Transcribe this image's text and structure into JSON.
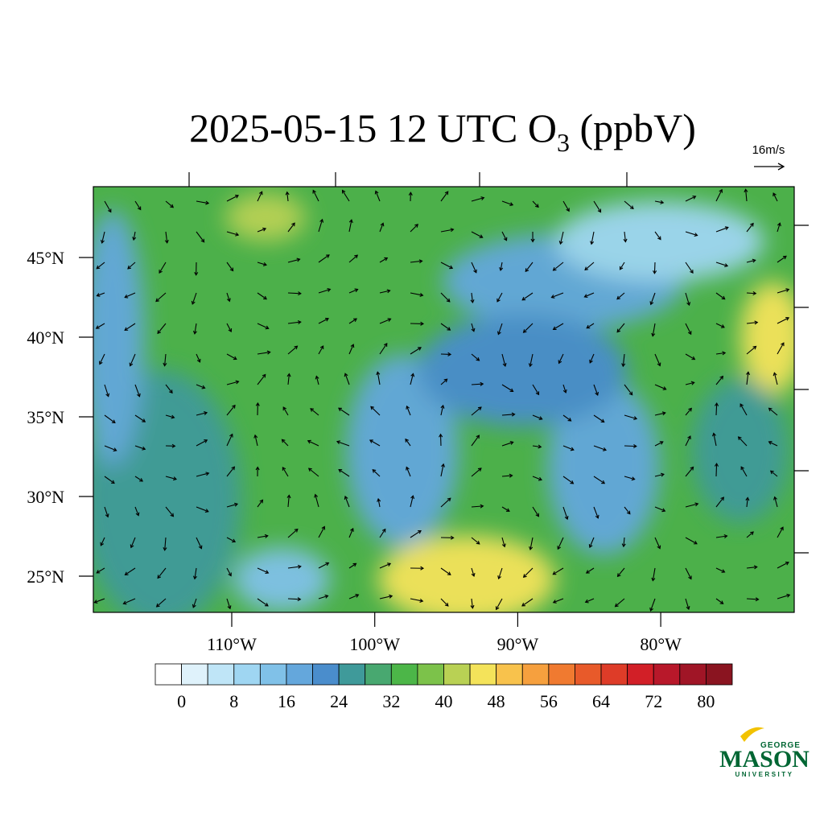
{
  "title": {
    "main": "2025-05-15 12 UTC O",
    "subscript": "3",
    "suffix": " (ppbV)"
  },
  "wind_reference": "16m/s",
  "lat_ticks": [
    {
      "value": 45,
      "label": "45°N"
    },
    {
      "value": 40,
      "label": "40°N"
    },
    {
      "value": 35,
      "label": "35°N"
    },
    {
      "value": 30,
      "label": "30°N"
    },
    {
      "value": 25,
      "label": "25°N"
    }
  ],
  "lon_ticks": [
    {
      "value": -110,
      "label": "110°W"
    },
    {
      "value": -100,
      "label": "100°W"
    },
    {
      "value": -90,
      "label": "90°W"
    },
    {
      "value": -80,
      "label": "80°W"
    }
  ],
  "colorbar": {
    "lim": [
      -4,
      84
    ],
    "ticks": [
      0,
      8,
      16,
      24,
      32,
      40,
      48,
      56,
      64,
      72,
      80
    ],
    "colors": [
      "#ffffff",
      "#dff2fb",
      "#bfe5f7",
      "#9fd6f2",
      "#80c1e8",
      "#64a7dc",
      "#4a8dcc",
      "#3f9a9a",
      "#48a870",
      "#4cb648",
      "#7cc24a",
      "#b9d154",
      "#f4e35a",
      "#f8c24c",
      "#f6a03e",
      "#f07a30",
      "#e85a2a",
      "#de3c28",
      "#d21f27",
      "#b8182a",
      "#a01526",
      "#8a1420"
    ]
  },
  "logo": {
    "top": "GEORGE",
    "main": "MASON",
    "bottom": "UNIVERSITY"
  }
}
